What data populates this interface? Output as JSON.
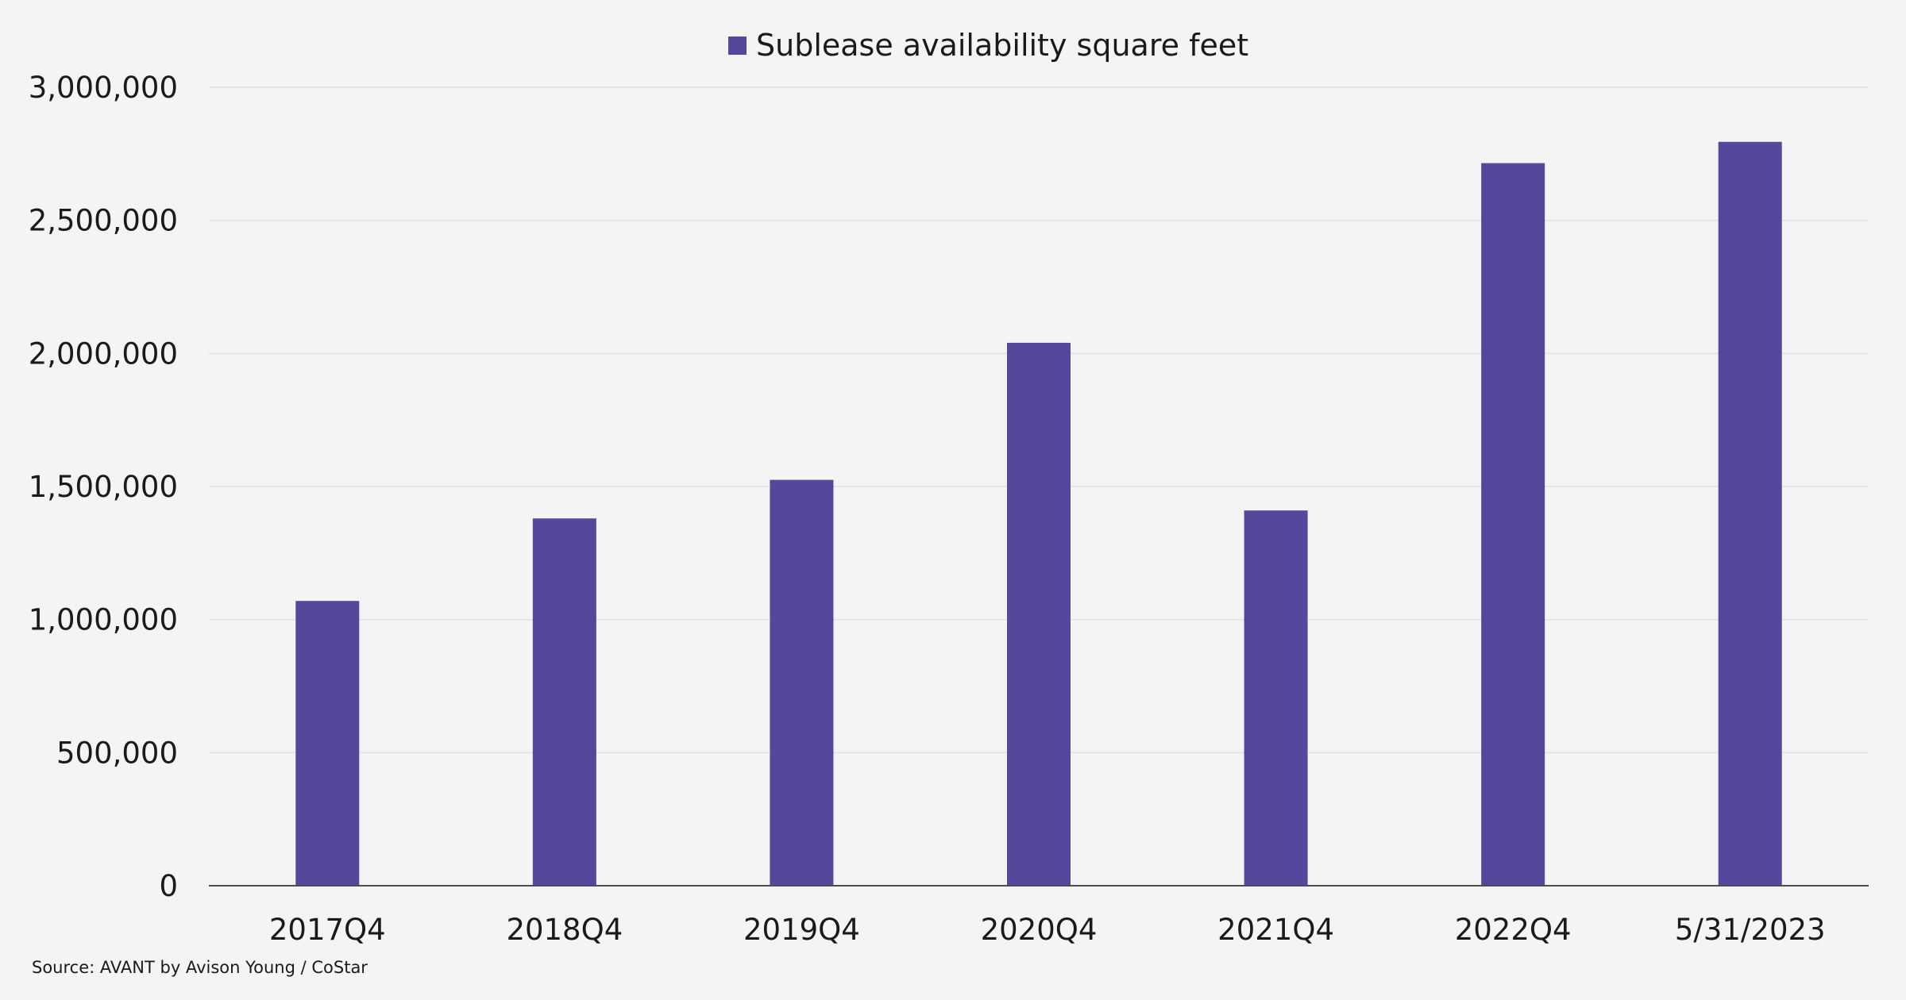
{
  "chart_data": {
    "type": "bar",
    "categories": [
      "2017Q4",
      "2018Q4",
      "2019Q4",
      "2020Q4",
      "2021Q4",
      "2022Q4",
      "5/31/2023"
    ],
    "series": [
      {
        "name": "Sublease availability square feet",
        "values": [
          1070000,
          1380000,
          1525000,
          2040000,
          1410000,
          2715000,
          2795000
        ],
        "color": "#55489c"
      }
    ],
    "ylim": [
      0,
      3000000
    ],
    "yticks": [
      0,
      500000,
      1000000,
      1500000,
      2000000,
      2500000,
      3000000
    ],
    "ytick_labels": [
      "0",
      "500,000",
      "1,000,000",
      "1,500,000",
      "2,000,000",
      "2,500,000",
      "3,000,000"
    ],
    "grid": true,
    "legend_position": "top-center",
    "source": "Source: AVANT by Avison Young / CoStar"
  },
  "colors": {
    "background": "#f4f4f4",
    "bar": "#55489c",
    "grid": "#e1e1e1",
    "axis": "#4d4d4d"
  }
}
